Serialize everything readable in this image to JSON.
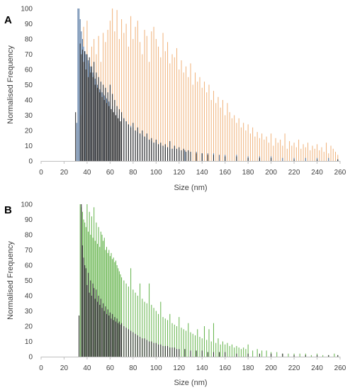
{
  "figure": {
    "panel_a_letter": "A",
    "panel_b_letter": "B"
  },
  "colors": {
    "dark": "#1f1f1f",
    "blue": "#4a6f9c",
    "orange": "#f0b27a",
    "green": "#63b34a",
    "axis": "#bfbfbf",
    "text": "#404040"
  },
  "chart_data": [
    {
      "panel": "A",
      "type": "bar",
      "xlabel": "Size (nm)",
      "ylabel": "Normalised Frequency",
      "xlim": [
        0,
        260
      ],
      "ylim": [
        0,
        100
      ],
      "xticks": [
        0,
        20,
        40,
        60,
        80,
        100,
        120,
        140,
        160,
        180,
        200,
        220,
        240,
        260
      ],
      "yticks": [
        0,
        10,
        20,
        30,
        40,
        50,
        60,
        70,
        80,
        90,
        100
      ],
      "grid": false,
      "legend": "none",
      "bin_width": 1,
      "series": [
        {
          "color": "orange",
          "x": [
            32,
            35,
            37,
            40,
            42,
            44,
            46,
            48,
            50,
            52,
            54,
            56,
            58,
            60,
            62,
            64,
            66,
            68,
            70,
            72,
            74,
            76,
            78,
            80,
            82,
            84,
            86,
            88,
            90,
            92,
            94,
            96,
            98,
            100,
            102,
            104,
            106,
            108,
            110,
            112,
            114,
            116,
            118,
            120,
            122,
            124,
            126,
            128,
            130,
            132,
            134,
            136,
            138,
            140,
            142,
            144,
            146,
            148,
            150,
            152,
            154,
            156,
            158,
            160,
            162,
            164,
            166,
            168,
            170,
            172,
            174,
            176,
            178,
            180,
            182,
            184,
            186,
            188,
            190,
            192,
            194,
            196,
            198,
            200,
            202,
            204,
            206,
            208,
            210,
            212,
            214,
            216,
            218,
            220,
            222,
            224,
            226,
            228,
            230,
            232,
            234,
            236,
            238,
            240,
            242,
            244,
            246,
            248,
            250,
            252,
            254,
            256,
            258
          ],
          "values": [
            20,
            30,
            88,
            92,
            45,
            75,
            80,
            70,
            82,
            65,
            84,
            78,
            86,
            92,
            100,
            85,
            99,
            80,
            93,
            84,
            90,
            75,
            95,
            80,
            88,
            92,
            78,
            70,
            86,
            82,
            65,
            85,
            88,
            80,
            75,
            68,
            84,
            72,
            78,
            64,
            70,
            68,
            74,
            60,
            66,
            58,
            62,
            55,
            64,
            50,
            58,
            52,
            55,
            48,
            52,
            45,
            50,
            40,
            46,
            38,
            42,
            35,
            40,
            30,
            38,
            32,
            28,
            30,
            25,
            28,
            22,
            25,
            20,
            24,
            18,
            22,
            16,
            19,
            15,
            18,
            14,
            16,
            12,
            18,
            10,
            15,
            12,
            14,
            10,
            18,
            8,
            13,
            10,
            12,
            9,
            14,
            8,
            11,
            9,
            12,
            7,
            10,
            8,
            11,
            7,
            9,
            6,
            12,
            5,
            10,
            8,
            6,
            4
          ]
        },
        {
          "color": "blue",
          "x": [
            31,
            32,
            33,
            34,
            35,
            36,
            37,
            38,
            39,
            40,
            41,
            42,
            43,
            44,
            45,
            46,
            47,
            48,
            49,
            50,
            51,
            52,
            53,
            54,
            55,
            56,
            57,
            58,
            59,
            60,
            62,
            64,
            66,
            68,
            70,
            72,
            74,
            76,
            78,
            80,
            82,
            84,
            86,
            88,
            90,
            92,
            94,
            96,
            98,
            100,
            102,
            104,
            106,
            108,
            110,
            112,
            114,
            116,
            118,
            120,
            125,
            130,
            135,
            140,
            145,
            150,
            155,
            160,
            170,
            180,
            190,
            200,
            210,
            220,
            230,
            240,
            250,
            258
          ],
          "values": [
            25,
            100,
            100,
            93,
            85,
            80,
            75,
            72,
            70,
            68,
            66,
            64,
            62,
            60,
            58,
            56,
            54,
            52,
            50,
            48,
            47,
            46,
            45,
            44,
            43,
            42,
            41,
            40,
            39,
            38,
            36,
            34,
            32,
            30,
            29,
            28,
            26,
            24,
            23,
            22,
            20,
            19,
            18,
            17,
            16,
            15,
            14,
            13,
            12,
            12,
            11,
            10,
            10,
            9,
            9,
            8,
            8,
            8,
            7,
            7,
            7,
            6,
            6,
            5,
            5,
            5,
            4,
            4,
            4,
            3,
            3,
            3,
            2,
            2,
            2,
            2,
            2,
            1
          ]
        },
        {
          "color": "dark",
          "x": [
            30,
            34,
            35,
            36,
            37,
            38,
            39,
            40,
            41,
            42,
            43,
            44,
            45,
            46,
            47,
            48,
            49,
            50,
            51,
            52,
            53,
            54,
            55,
            56,
            57,
            58,
            59,
            60,
            61,
            62,
            63,
            64,
            65,
            66,
            67,
            68,
            69,
            70,
            72,
            74,
            76,
            78,
            80,
            82,
            84,
            86,
            88,
            90,
            92,
            94,
            96,
            98,
            100,
            102,
            104,
            106,
            108,
            110,
            112,
            114,
            116,
            118,
            120,
            122,
            124,
            126,
            128,
            130,
            135,
            140,
            145,
            150,
            160,
            170,
            180,
            190,
            200,
            220,
            240,
            258
          ],
          "values": [
            32,
            77,
            70,
            73,
            65,
            72,
            60,
            70,
            55,
            68,
            58,
            62,
            55,
            65,
            50,
            58,
            48,
            55,
            45,
            52,
            42,
            50,
            40,
            48,
            38,
            45,
            36,
            50,
            34,
            44,
            32,
            40,
            30,
            36,
            28,
            34,
            26,
            32,
            28,
            26,
            24,
            22,
            25,
            20,
            22,
            18,
            20,
            16,
            18,
            14,
            15,
            12,
            14,
            11,
            12,
            10,
            11,
            9,
            13,
            8,
            10,
            8,
            9,
            7,
            8,
            6,
            7,
            6,
            5,
            5,
            4,
            4,
            3,
            3,
            2,
            2,
            2,
            1,
            1,
            1
          ]
        }
      ]
    },
    {
      "panel": "B",
      "type": "bar",
      "xlabel": "Size (nm)",
      "ylabel": "Normalised Frequency",
      "xlim": [
        0,
        260
      ],
      "ylim": [
        0,
        100
      ],
      "xticks": [
        0,
        20,
        40,
        60,
        80,
        100,
        120,
        140,
        160,
        180,
        200,
        220,
        240,
        260
      ],
      "yticks": [
        0,
        10,
        20,
        30,
        40,
        50,
        60,
        70,
        80,
        90,
        100
      ],
      "grid": false,
      "legend": "none",
      "bin_width": 1,
      "series": [
        {
          "color": "green",
          "x": [
            34,
            35,
            36,
            37,
            38,
            39,
            40,
            41,
            42,
            43,
            44,
            45,
            46,
            47,
            48,
            49,
            50,
            51,
            52,
            53,
            54,
            55,
            56,
            57,
            58,
            59,
            60,
            61,
            62,
            63,
            64,
            65,
            66,
            67,
            68,
            69,
            70,
            72,
            74,
            76,
            78,
            80,
            82,
            84,
            86,
            88,
            90,
            92,
            94,
            96,
            98,
            100,
            102,
            104,
            106,
            108,
            110,
            112,
            114,
            116,
            118,
            120,
            122,
            124,
            126,
            128,
            130,
            132,
            134,
            136,
            138,
            140,
            142,
            144,
            146,
            148,
            150,
            152,
            154,
            156,
            158,
            160,
            162,
            164,
            166,
            168,
            170,
            172,
            174,
            176,
            178,
            180,
            184,
            188,
            192,
            196,
            200,
            205,
            210,
            215,
            220,
            225,
            230,
            235,
            240,
            245,
            250,
            255,
            258
          ],
          "values": [
            100,
            98,
            95,
            90,
            88,
            85,
            100,
            82,
            95,
            80,
            92,
            78,
            98,
            76,
            88,
            74,
            85,
            72,
            82,
            80,
            76,
            78,
            70,
            72,
            68,
            70,
            66,
            68,
            64,
            65,
            62,
            63,
            60,
            58,
            56,
            54,
            52,
            50,
            48,
            46,
            58,
            44,
            42,
            40,
            48,
            38,
            36,
            35,
            48,
            34,
            32,
            30,
            28,
            36,
            26,
            25,
            24,
            28,
            22,
            21,
            20,
            26,
            19,
            18,
            17,
            22,
            16,
            15,
            14,
            18,
            13,
            12,
            20,
            11,
            18,
            10,
            22,
            9,
            12,
            8,
            10,
            8,
            9,
            7,
            8,
            6,
            7,
            6,
            5,
            6,
            5,
            8,
            4,
            5,
            4,
            4,
            3,
            3,
            2,
            2,
            2,
            2,
            2,
            1,
            2,
            1,
            1,
            2,
            1
          ]
        },
        {
          "color": "dark",
          "x": [
            33,
            35,
            36,
            37,
            38,
            39,
            40,
            41,
            42,
            43,
            44,
            45,
            46,
            47,
            48,
            49,
            50,
            51,
            52,
            53,
            54,
            55,
            56,
            57,
            58,
            59,
            60,
            61,
            62,
            63,
            64,
            65,
            66,
            67,
            68,
            69,
            70,
            72,
            74,
            76,
            78,
            80,
            82,
            84,
            86,
            88,
            90,
            92,
            94,
            96,
            98,
            100,
            102,
            104,
            106,
            108,
            110,
            112,
            114,
            116,
            118,
            120,
            125,
            130,
            135,
            140,
            145,
            150,
            155,
            160,
            170,
            180,
            190,
            200,
            210,
            220,
            230,
            240,
            250,
            258
          ],
          "values": [
            27,
            100,
            73,
            65,
            60,
            58,
            47,
            55,
            42,
            50,
            40,
            48,
            45,
            38,
            44,
            36,
            40,
            34,
            38,
            32,
            35,
            30,
            33,
            28,
            31,
            27,
            29,
            25,
            28,
            24,
            26,
            23,
            25,
            22,
            23,
            21,
            22,
            20,
            19,
            18,
            17,
            16,
            15,
            14,
            13,
            12,
            12,
            11,
            10,
            10,
            9,
            9,
            8,
            8,
            7,
            7,
            7,
            6,
            6,
            6,
            5,
            5,
            5,
            4,
            4,
            4,
            3,
            3,
            3,
            3,
            2,
            2,
            2,
            2,
            2,
            1,
            1,
            1,
            1,
            1
          ]
        }
      ]
    }
  ]
}
